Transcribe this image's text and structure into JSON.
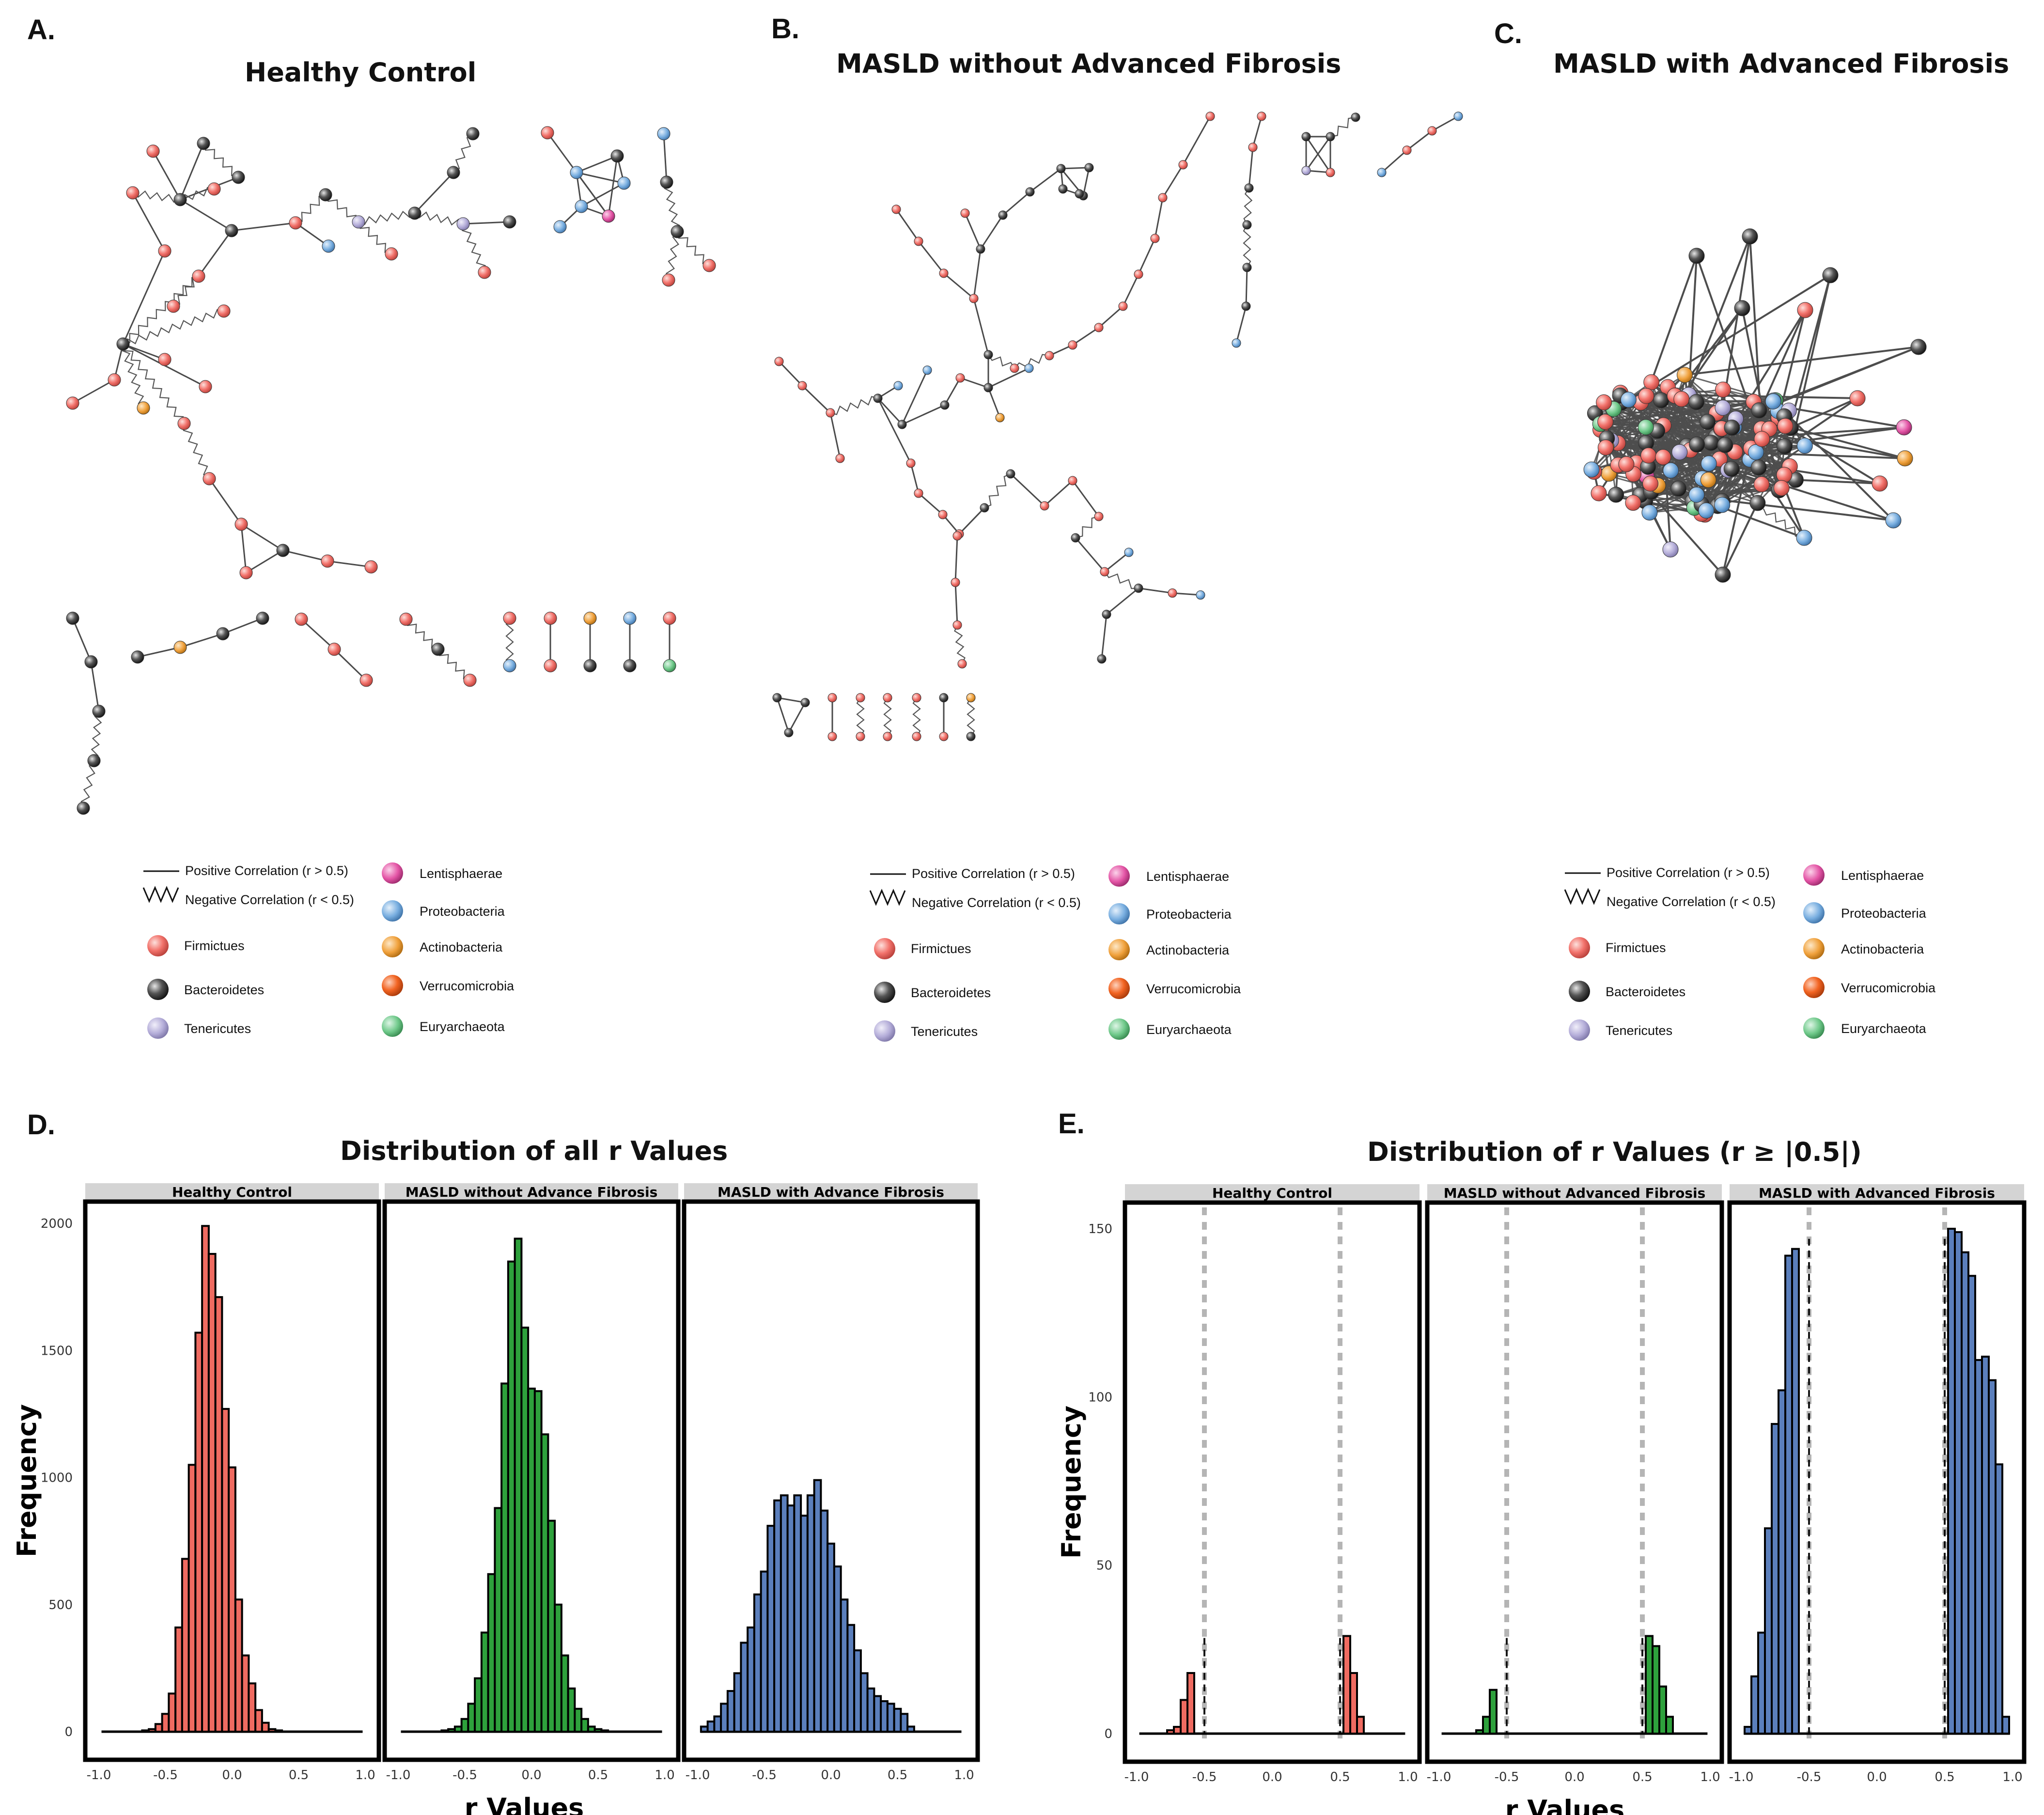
{
  "figure": {
    "panel_labels": [
      "A.",
      "B.",
      "C.",
      "D.",
      "E."
    ],
    "networks": [
      {
        "letter": "A.",
        "title": "Healthy Control"
      },
      {
        "letter": "B.",
        "title": "MASLD without Advanced Fibrosis"
      },
      {
        "letter": "C.",
        "title": "MASLD with Advanced Fibrosis"
      }
    ],
    "legend": {
      "positive": "Positive Correlation (r > 0.5)",
      "negative": "Negative Correlation (r < 0.5)",
      "phyla": [
        {
          "name": "Firmictues",
          "color": "#f2726b"
        },
        {
          "name": "Bacteroidetes",
          "color": "#444444"
        },
        {
          "name": "Tenericutes",
          "color": "#b3acd8"
        },
        {
          "name": "Lentisphaerae",
          "color": "#e455a6"
        },
        {
          "name": "Proteobacteria",
          "color": "#78aee0"
        },
        {
          "name": "Actinobacteria",
          "color": "#f0a13c"
        },
        {
          "name": "Verrucomicrobia",
          "color": "#f26422"
        },
        {
          "name": "Euryarchaeota",
          "color": "#6fc98a"
        }
      ]
    }
  },
  "chart_data": [
    {
      "type": "bar",
      "panel": "D.",
      "title": "Distribution of all r Values",
      "xlabel": "r Values",
      "ylabel": "Frequency",
      "xlim": [
        -1.0,
        1.0
      ],
      "ylim": [
        0,
        2000
      ],
      "x_ticks": [
        "-1.0",
        "-0.5",
        "0.0",
        "0.5",
        "1.0"
      ],
      "y_ticks": [
        "0",
        "500",
        "1000",
        "1500",
        "2000"
      ],
      "bin_width": 0.05,
      "facets": [
        {
          "name": "Healthy Control",
          "color": "#ef6b61",
          "bins": [
            -0.95,
            -0.9,
            -0.85,
            -0.8,
            -0.75,
            -0.7,
            -0.65,
            -0.6,
            -0.55,
            -0.5,
            -0.45,
            -0.4,
            -0.35,
            -0.3,
            -0.25,
            -0.2,
            -0.15,
            -0.1,
            -0.05,
            0.0,
            0.05,
            0.1,
            0.15,
            0.2,
            0.25,
            0.3,
            0.35,
            0.4,
            0.45,
            0.5,
            0.55,
            0.6,
            0.65,
            0.7,
            0.75,
            0.8,
            0.85,
            0.9,
            0.95
          ],
          "values": [
            0,
            0,
            0,
            0,
            0,
            0,
            5,
            10,
            30,
            70,
            150,
            410,
            680,
            1050,
            1570,
            1990,
            1880,
            1710,
            1270,
            1040,
            520,
            300,
            190,
            85,
            35,
            10,
            5,
            0,
            0,
            0,
            0,
            0,
            0,
            0,
            0,
            0,
            0,
            0,
            0
          ]
        },
        {
          "name": "MASLD without Advance Fibrosis",
          "color": "#2ea13c",
          "bins": [
            -0.95,
            -0.9,
            -0.85,
            -0.8,
            -0.75,
            -0.7,
            -0.65,
            -0.6,
            -0.55,
            -0.5,
            -0.45,
            -0.4,
            -0.35,
            -0.3,
            -0.25,
            -0.2,
            -0.15,
            -0.1,
            -0.05,
            0.0,
            0.05,
            0.1,
            0.15,
            0.2,
            0.25,
            0.3,
            0.35,
            0.4,
            0.45,
            0.5,
            0.55,
            0.6,
            0.65,
            0.7,
            0.75,
            0.8,
            0.85,
            0.9,
            0.95
          ],
          "values": [
            0,
            0,
            0,
            0,
            0,
            0,
            5,
            10,
            20,
            50,
            110,
            210,
            390,
            620,
            880,
            1370,
            1850,
            1940,
            1590,
            1350,
            1340,
            1170,
            830,
            500,
            300,
            170,
            90,
            50,
            20,
            10,
            5,
            0,
            0,
            0,
            0,
            0,
            0,
            0,
            0
          ]
        },
        {
          "name": "MASLD with Advance Fibrosis",
          "color": "#5b7fbc",
          "bins": [
            -0.95,
            -0.9,
            -0.85,
            -0.8,
            -0.75,
            -0.7,
            -0.65,
            -0.6,
            -0.55,
            -0.5,
            -0.45,
            -0.4,
            -0.35,
            -0.3,
            -0.25,
            -0.2,
            -0.15,
            -0.1,
            -0.05,
            0.0,
            0.05,
            0.1,
            0.15,
            0.2,
            0.25,
            0.3,
            0.35,
            0.4,
            0.45,
            0.5,
            0.55,
            0.6,
            0.65,
            0.7,
            0.75,
            0.8,
            0.85,
            0.9,
            0.95
          ],
          "values": [
            20,
            40,
            60,
            110,
            160,
            230,
            350,
            410,
            540,
            630,
            810,
            910,
            930,
            890,
            930,
            850,
            930,
            990,
            870,
            740,
            650,
            520,
            420,
            320,
            230,
            170,
            140,
            120,
            110,
            90,
            70,
            20,
            0,
            0,
            0,
            0,
            0,
            0,
            0
          ]
        }
      ]
    },
    {
      "type": "bar",
      "panel": "E.",
      "title": "Distribution of r Values (r ≥ |0.5|)",
      "xlabel": "r Values",
      "ylabel": "Frequency",
      "xlim": [
        -1.0,
        1.0
      ],
      "ylim": [
        0,
        150
      ],
      "x_ticks": [
        "-1.0",
        "-0.5",
        "0.0",
        "0.5",
        "1.0"
      ],
      "y_ticks": [
        "0",
        "50",
        "100",
        "150"
      ],
      "reference_lines": [
        -0.5,
        0.5
      ],
      "bin_width": 0.05,
      "facets": [
        {
          "name": "Healthy Control",
          "color": "#ef6b61",
          "bins": [
            -0.75,
            -0.7,
            -0.65,
            -0.6,
            -0.55,
            0.5,
            0.55,
            0.6,
            0.65
          ],
          "values": [
            1,
            2,
            10,
            18,
            0,
            0,
            29,
            18,
            5
          ]
        },
        {
          "name": "MASLD without Advanced Fibrosis",
          "color": "#2ea13c",
          "bins": [
            -0.75,
            -0.7,
            -0.65,
            -0.6,
            -0.55,
            0.5,
            0.55,
            0.6,
            0.65,
            0.7,
            0.75
          ],
          "values": [
            0,
            1,
            5,
            13,
            0,
            0,
            29,
            26,
            14,
            5,
            0
          ]
        },
        {
          "name": "MASLD with Advanced Fibrosis",
          "color": "#5b7fbc",
          "bins": [
            -0.95,
            -0.9,
            -0.85,
            -0.8,
            -0.75,
            -0.7,
            -0.65,
            -0.6,
            -0.55,
            0.5,
            0.55,
            0.6,
            0.65,
            0.7,
            0.75,
            0.8,
            0.85,
            0.9,
            0.95
          ],
          "values": [
            2,
            17,
            30,
            61,
            92,
            102,
            142,
            144,
            0,
            0,
            150,
            149,
            143,
            136,
            111,
            112,
            105,
            80,
            5
          ]
        }
      ]
    }
  ]
}
